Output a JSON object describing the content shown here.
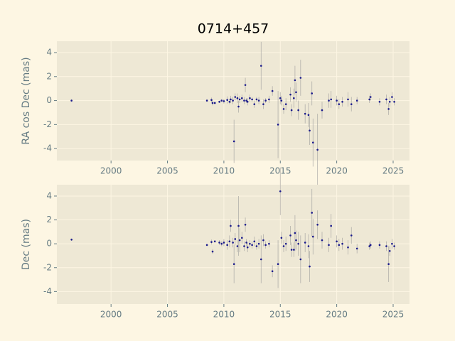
{
  "chart_data": [
    {
      "type": "scatter",
      "title": "0714+457",
      "ylabel": "RA cos Dec (mas)",
      "color": "#1a1a8c",
      "error_color": "#999999",
      "grid": true,
      "xlim": [
        1995.2,
        2026.45
      ],
      "ylim": [
        -5.0,
        4.95
      ],
      "xticks": [
        2000,
        2005,
        2010,
        2015,
        2020,
        2025
      ],
      "yticks": [
        -4,
        -2,
        0,
        2,
        4
      ],
      "x": [
        1996.5,
        2008.5,
        2008.9,
        2009.0,
        2009.2,
        2009.6,
        2009.8,
        2010.0,
        2010.3,
        2010.5,
        2010.6,
        2010.8,
        2010.9,
        2011.0,
        2011.2,
        2011.3,
        2011.4,
        2011.6,
        2011.8,
        2011.9,
        2012.0,
        2012.1,
        2012.3,
        2012.5,
        2012.7,
        2012.9,
        2013.1,
        2013.3,
        2013.5,
        2013.7,
        2014.0,
        2014.3,
        2014.8,
        2015.0,
        2015.1,
        2015.3,
        2015.5,
        2015.9,
        2016.0,
        2016.2,
        2016.3,
        2016.4,
        2016.6,
        2016.8,
        2017.2,
        2017.5,
        2017.6,
        2017.8,
        2017.9,
        2018.3,
        2018.7,
        2019.3,
        2019.5,
        2020.0,
        2020.2,
        2020.5,
        2021.0,
        2021.3,
        2021.8,
        2022.9,
        2023.0,
        2023.8,
        2024.4,
        2024.6,
        2024.7,
        2024.9,
        2025.1
      ],
      "values": [
        0,
        0,
        0.05,
        -0.2,
        -0.2,
        -0.1,
        0,
        -0.05,
        0.05,
        -0.1,
        0.1,
        0,
        -3.4,
        0.3,
        0.2,
        -0.5,
        0.1,
        0.2,
        0,
        1.3,
        0,
        -0.1,
        0.2,
        0.1,
        -0.3,
        0.1,
        0,
        2.9,
        -0.3,
        0,
        0.1,
        0.8,
        -2,
        0.2,
        0,
        -0.7,
        -0.3,
        0.5,
        -0.8,
        0.2,
        1.7,
        0.7,
        -0.8,
        1.9,
        -1.1,
        -1.2,
        -2.5,
        0.6,
        -3.5,
        -4.1,
        -0.8,
        0,
        0.1,
        0,
        -0.3,
        -0.1,
        0.1,
        -0.3,
        0,
        0.1,
        0.3,
        -0.1,
        0.1,
        -0.7,
        -0.1,
        0.3,
        -0.1
      ],
      "errors": [
        0.1,
        0.1,
        0.2,
        0.2,
        0.1,
        0.1,
        0.1,
        0.2,
        0.3,
        0.2,
        0.3,
        0.3,
        1.8,
        0.3,
        0.4,
        0.5,
        0.3,
        0.3,
        0.3,
        0.6,
        0.2,
        0.3,
        0.3,
        0.2,
        0.3,
        0.2,
        0.3,
        2,
        0.4,
        0.2,
        0.3,
        0.4,
        2.8,
        0.5,
        0.4,
        0.4,
        0.5,
        0.6,
        0.5,
        0.8,
        1.2,
        0.8,
        0.8,
        1.5,
        0.8,
        1,
        1.2,
        1,
        2,
        3,
        0.7,
        0.6,
        0.7,
        0.4,
        0.4,
        0.4,
        0.6,
        0.6,
        0.3,
        0.3,
        0.3,
        0.3,
        0.4,
        0.5,
        0.4,
        0.4,
        0.3
      ]
    },
    {
      "type": "scatter",
      "ylabel": "Dec (mas)",
      "color": "#1a1a8c",
      "error_color": "#999999",
      "grid": true,
      "xlim": [
        1995.2,
        2026.45
      ],
      "ylim": [
        -5.05,
        4.95
      ],
      "xticks": [
        2000,
        2005,
        2010,
        2015,
        2020,
        2025
      ],
      "yticks": [
        -4,
        -2,
        0,
        2,
        4
      ],
      "x": [
        1996.5,
        2008.5,
        2008.9,
        2009.0,
        2009.2,
        2009.6,
        2009.8,
        2010.0,
        2010.3,
        2010.5,
        2010.6,
        2010.8,
        2010.9,
        2011.0,
        2011.2,
        2011.3,
        2011.4,
        2011.6,
        2011.8,
        2011.9,
        2012.0,
        2012.1,
        2012.3,
        2012.5,
        2012.7,
        2012.9,
        2013.1,
        2013.3,
        2013.5,
        2013.7,
        2014.0,
        2014.3,
        2014.8,
        2015.0,
        2015.1,
        2015.3,
        2015.5,
        2015.9,
        2016.0,
        2016.2,
        2016.3,
        2016.4,
        2016.6,
        2016.8,
        2017.2,
        2017.5,
        2017.6,
        2017.8,
        2017.9,
        2018.3,
        2018.7,
        2019.3,
        2019.5,
        2020.0,
        2020.2,
        2020.5,
        2021.0,
        2021.3,
        2021.8,
        2022.9,
        2023.0,
        2023.8,
        2024.4,
        2024.6,
        2024.7,
        2024.9,
        2025.1
      ],
      "values": [
        0.35,
        -0.1,
        0.15,
        -0.65,
        0.2,
        0.1,
        0,
        0.1,
        -0.1,
        0.2,
        1.5,
        0.1,
        -1.7,
        0.4,
        -0.2,
        1.5,
        0.3,
        0.5,
        -0.2,
        1.6,
        0.1,
        -0.3,
        0,
        -0.1,
        0.2,
        -0.2,
        0,
        -1.3,
        0.3,
        -0.1,
        0,
        -2.3,
        -1.7,
        4.4,
        0.5,
        -0.2,
        0,
        0.7,
        -0.5,
        -0.5,
        0.9,
        0.3,
        0,
        -1.3,
        0.1,
        -0.2,
        -1.9,
        2.6,
        0.6,
        1.6,
        0.3,
        -0.1,
        1.5,
        0.2,
        -0.1,
        0,
        -0.3,
        0.7,
        -0.4,
        -0.2,
        -0.1,
        -0.1,
        -0.2,
        -1.7,
        -0.6,
        0,
        -0.2
      ],
      "errors": [
        0.1,
        0.1,
        0.2,
        0.2,
        0.1,
        0.2,
        0.2,
        0.3,
        0.4,
        0.5,
        0.5,
        0.4,
        1.6,
        0.5,
        0.5,
        2.5,
        1,
        0.5,
        0.4,
        0.6,
        0.3,
        0.4,
        0.3,
        0.3,
        0.4,
        0.3,
        0.4,
        2,
        0.5,
        0.3,
        0.3,
        0.5,
        2,
        2,
        0.5,
        0.5,
        0.6,
        0.8,
        0.6,
        0.6,
        1.5,
        0.8,
        1,
        2,
        0.8,
        1,
        1.3,
        2,
        1.5,
        1.2,
        0.7,
        0.6,
        1,
        0.5,
        0.5,
        0.5,
        0.6,
        0.7,
        0.4,
        0.3,
        0.3,
        0.3,
        0.4,
        1.5,
        0.4,
        0.4,
        0.3
      ]
    }
  ]
}
